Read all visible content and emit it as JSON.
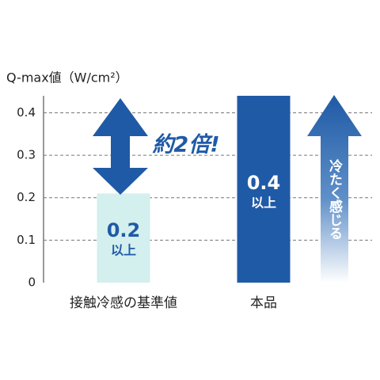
{
  "chart_data": {
    "type": "bar",
    "y_label": "Q-max値（W/cm²）",
    "categories": [
      "接触冷感の基準値",
      "本品"
    ],
    "values": [
      0.21,
      0.44
    ],
    "value_labels": [
      "0.2",
      "0.4"
    ],
    "value_label_suffix": "以上",
    "colors": [
      "#d3efee",
      "#1f5aa6"
    ],
    "ylim": [
      0,
      0.44
    ],
    "yticks": [
      0,
      0.1,
      0.2,
      0.3,
      0.4
    ],
    "grid": true,
    "annotations": [
      "約2倍!",
      "冷たく感じる"
    ]
  }
}
